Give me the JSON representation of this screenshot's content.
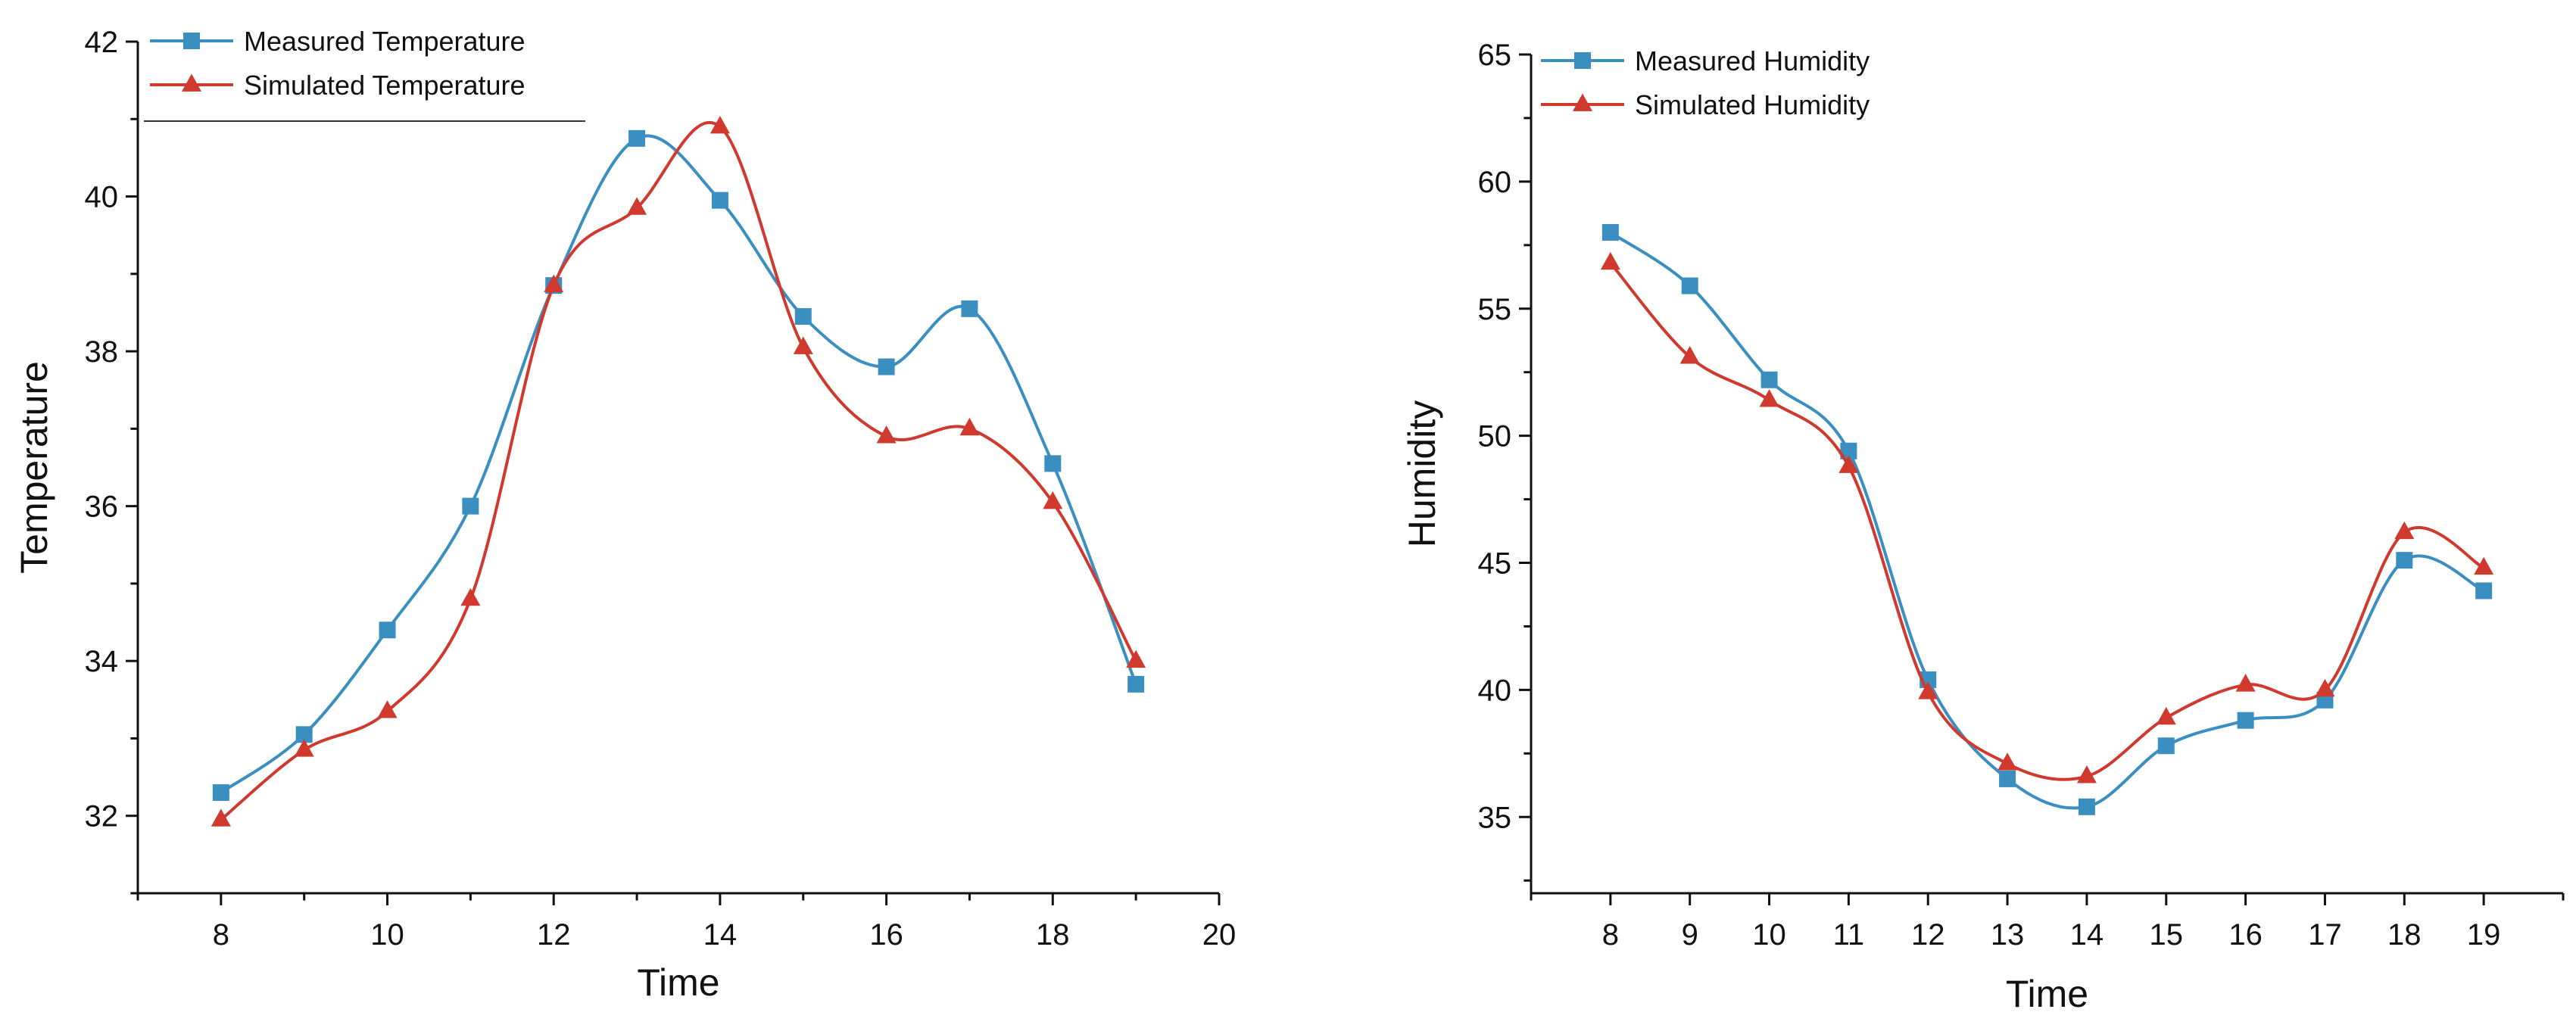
{
  "chart_data": [
    {
      "type": "line",
      "title": "",
      "xlabel": "Time",
      "ylabel": "Temperature",
      "xlim": [
        7,
        20
      ],
      "ylim": [
        31,
        42
      ],
      "x_ticks": [
        8,
        10,
        12,
        14,
        16,
        18,
        20
      ],
      "y_ticks": [
        32,
        34,
        36,
        38,
        40,
        42
      ],
      "legend_position": "top-left",
      "x": [
        8,
        9,
        10,
        11,
        12,
        13,
        14,
        15,
        16,
        17,
        18,
        19
      ],
      "series": [
        {
          "name": "Measured Temperature",
          "marker": "square",
          "color": "#3a8fc0",
          "values": [
            32.3,
            33.05,
            34.4,
            36.0,
            38.85,
            40.75,
            39.95,
            38.45,
            37.8,
            38.55,
            36.55,
            33.7
          ]
        },
        {
          "name": "Simulated  Temperature",
          "marker": "triangle",
          "color": "#d03a2e",
          "values": [
            31.95,
            32.85,
            33.35,
            34.8,
            38.85,
            39.85,
            40.9,
            38.05,
            36.9,
            37.0,
            36.05,
            34.0
          ]
        }
      ]
    },
    {
      "type": "line",
      "title": "",
      "xlabel": "Time",
      "ylabel": "Humidity",
      "xlim": [
        7,
        20
      ],
      "ylim": [
        32,
        65
      ],
      "x_ticks": [
        8,
        9,
        10,
        11,
        12,
        13,
        14,
        15,
        16,
        17,
        18,
        19
      ],
      "y_ticks": [
        35,
        40,
        45,
        50,
        55,
        60,
        65
      ],
      "legend_position": "top-left",
      "x": [
        8,
        9,
        10,
        11,
        12,
        13,
        14,
        15,
        16,
        17,
        18,
        19
      ],
      "series": [
        {
          "name": "Measured Humidity",
          "marker": "square",
          "color": "#3a8fc0",
          "values": [
            58.0,
            55.9,
            52.2,
            49.4,
            40.4,
            36.5,
            35.4,
            37.8,
            38.8,
            39.6,
            45.1,
            43.9
          ]
        },
        {
          "name": "Simulated Humidity",
          "marker": "triangle",
          "color": "#d03a2e",
          "values": [
            56.8,
            53.1,
            51.4,
            48.8,
            39.9,
            37.1,
            36.6,
            38.9,
            40.2,
            40.0,
            46.2,
            44.8
          ]
        }
      ]
    }
  ]
}
